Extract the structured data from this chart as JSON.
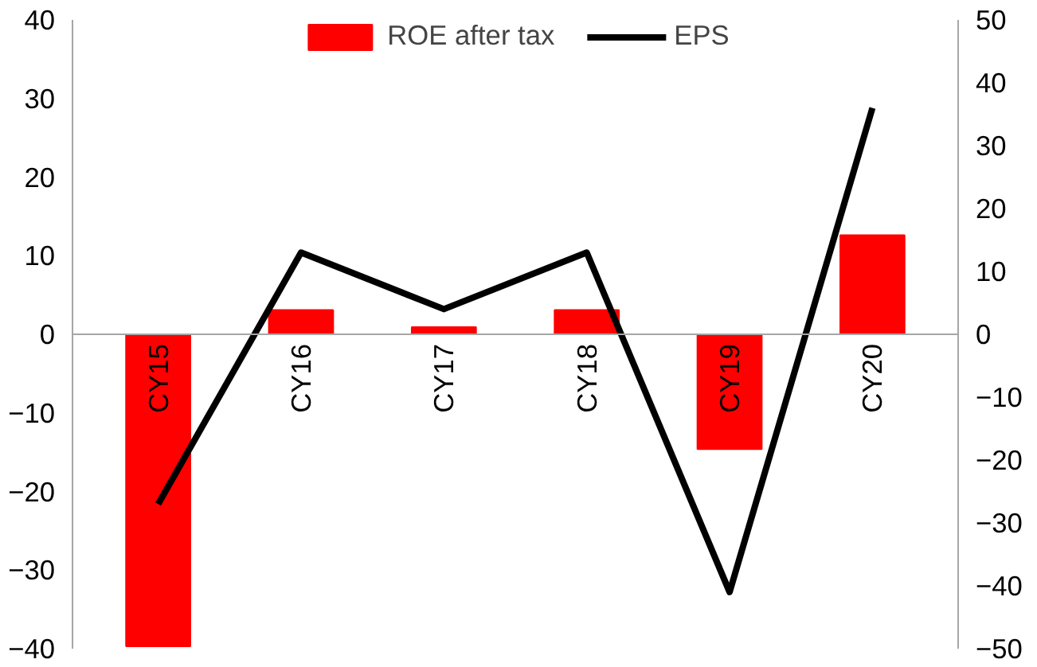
{
  "chart_data": {
    "type": "bar",
    "categories": [
      "CY15",
      "CY16",
      "CY17",
      "CY18",
      "CY19",
      "CY20"
    ],
    "series": [
      {
        "name": "ROE after tax",
        "color": "#ff0000",
        "values": [
          -39.7,
          3.1,
          0.9,
          3.1,
          -14.6,
          12.6
        ]
      },
      {
        "name": "EPS",
        "type": "line",
        "axis": "y2",
        "color": "#000000",
        "values": [
          -27,
          13,
          4,
          13,
          -41,
          36
        ]
      }
    ],
    "ylim": [
      -40,
      40
    ],
    "yticks": [
      -40,
      -30,
      -20,
      -10,
      0,
      10,
      20,
      30,
      40
    ],
    "y2lim": [
      -50,
      50
    ],
    "y2ticks": [
      -50,
      -40,
      -30,
      -20,
      -10,
      0,
      10,
      20,
      30,
      40,
      50
    ],
    "legend": "top",
    "grid": false
  }
}
